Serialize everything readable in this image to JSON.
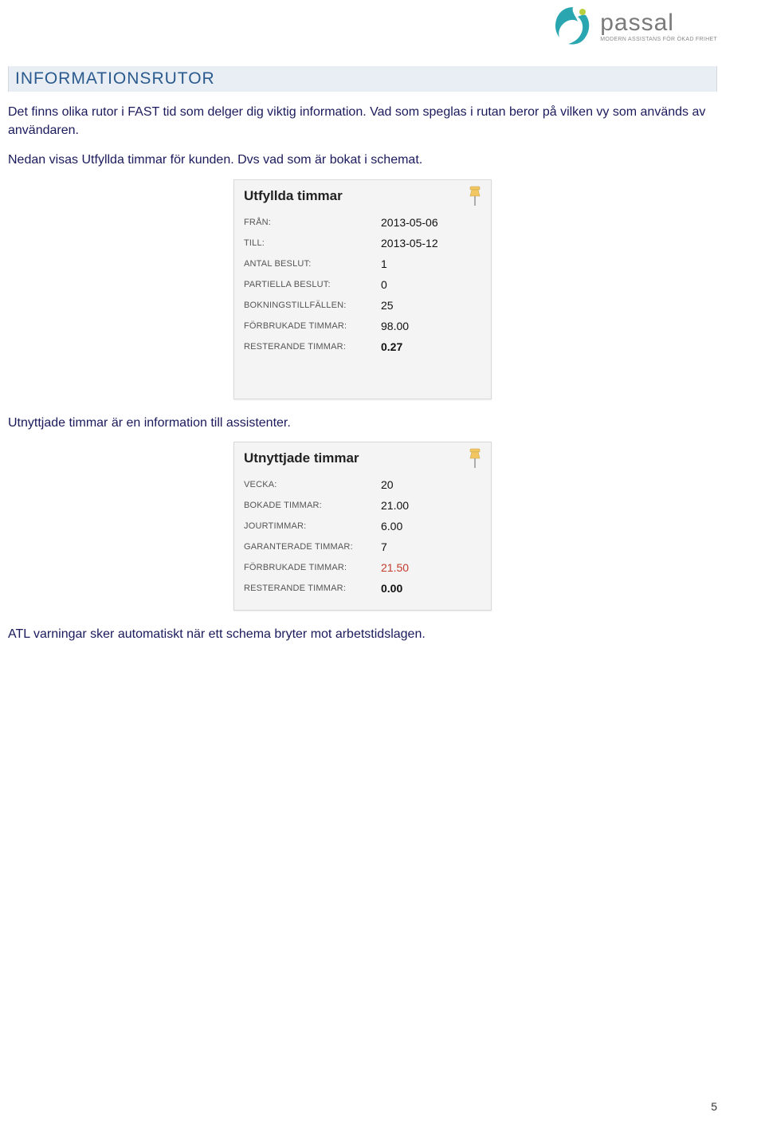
{
  "logo": {
    "brand": "passal",
    "tagline": "MODERN ASSISTANS FÖR ÖKAD FRIHET",
    "mark_colors": {
      "teal": "#2aa6b1",
      "lime": "#b8cf3f"
    }
  },
  "section": {
    "title": "INFORMATIONSRUTOR",
    "bg": "#e8eef4",
    "color": "#2a5a8e"
  },
  "paragraphs": {
    "p1": "Det finns olika rutor i FAST tid som delger dig viktig information. Vad som speglas i rutan beror på vilken vy som används av användaren.",
    "p2": "Nedan visas Utfyllda timmar för kunden. Dvs vad som är bokat i schemat.",
    "p3": "Utnyttjade timmar är en information till assistenter.",
    "p4": "ATL varningar sker automatiskt när ett schema bryter mot arbetstidslagen.",
    "color": "#1a1a5c"
  },
  "panel1": {
    "title": "Utfyllda timmar",
    "rows": [
      {
        "label": "FRÅN:",
        "value": "2013-05-06",
        "bold": false,
        "red": false
      },
      {
        "label": "TILL:",
        "value": "2013-05-12",
        "bold": false,
        "red": false
      },
      {
        "label": "ANTAL BESLUT:",
        "value": "1",
        "bold": false,
        "red": false
      },
      {
        "label": "PARTIELLA BESLUT:",
        "value": "0",
        "bold": false,
        "red": false
      },
      {
        "label": "BOKNINGSTILLFÄLLEN:",
        "value": "25",
        "bold": false,
        "red": false
      },
      {
        "label": "FÖRBRUKADE TIMMAR:",
        "value": "98.00",
        "bold": false,
        "red": false
      },
      {
        "label": "RESTERANDE TIMMAR:",
        "value": "0.27",
        "bold": true,
        "red": false
      }
    ]
  },
  "panel2": {
    "title": "Utnyttjade timmar",
    "rows": [
      {
        "label": "VECKA:",
        "value": "20",
        "bold": false,
        "red": false
      },
      {
        "label": "BOKADE TIMMAR:",
        "value": "21.00",
        "bold": false,
        "red": false
      },
      {
        "label": "JOURTIMMAR:",
        "value": "6.00",
        "bold": false,
        "red": false
      },
      {
        "label": "GARANTERADE TIMMAR:",
        "value": "7",
        "bold": false,
        "red": false
      },
      {
        "label": "FÖRBRUKADE TIMMAR:",
        "value": "21.50",
        "bold": false,
        "red": true
      },
      {
        "label": "RESTERANDE TIMMAR:",
        "value": "0.00",
        "bold": true,
        "red": false
      }
    ]
  },
  "page_number": "5",
  "pin_colors": {
    "head": "#f2c661",
    "stick": "#9a9a9a"
  }
}
